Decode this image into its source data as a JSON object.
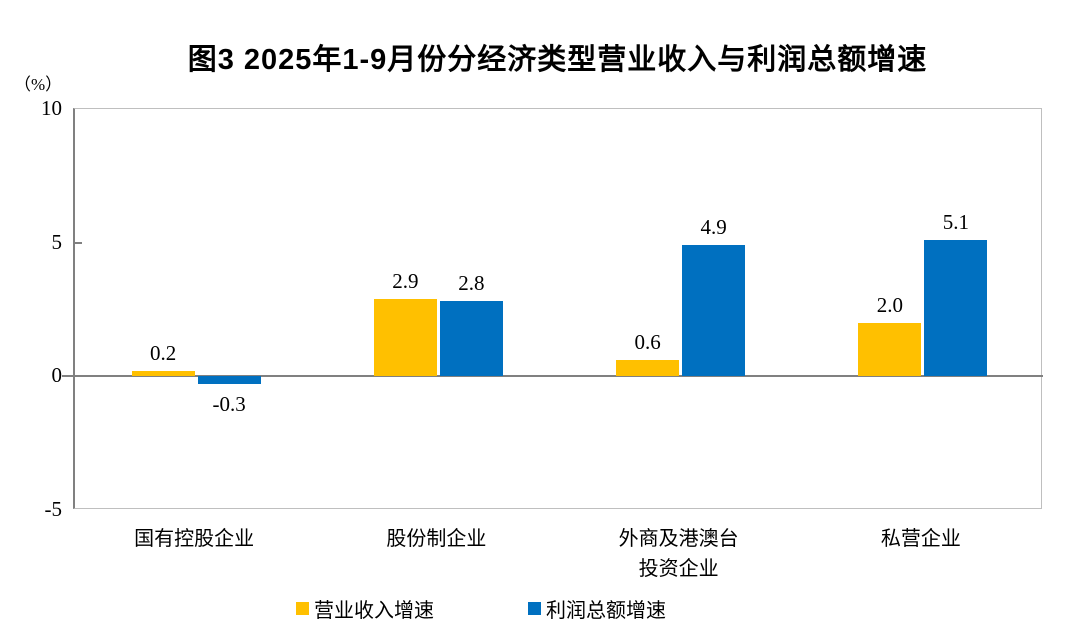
{
  "chart_data": {
    "type": "bar",
    "title": "图3  2025年1-9月份分经济类型营业收入与利润总额增速",
    "unit_label": "（%）",
    "categories": [
      "国有控股企业",
      "股份制企业",
      "外商及港澳台\n投资企业",
      "私营企业"
    ],
    "series": [
      {
        "name": "营业收入增速",
        "color": "#FFC000",
        "values": [
          0.2,
          2.9,
          0.6,
          2.0
        ]
      },
      {
        "name": "利润总额增速",
        "color": "#0070C0",
        "values": [
          -0.3,
          2.8,
          4.9,
          5.1
        ]
      }
    ],
    "value_labels": [
      [
        "0.2",
        "2.9",
        "0.6",
        "2.0"
      ],
      [
        "-0.3",
        "2.8",
        "4.9",
        "5.1"
      ]
    ],
    "ylim": [
      -5,
      10
    ],
    "yticks": [
      10,
      5,
      0,
      -5
    ],
    "grid": false,
    "legend_position": "bottom",
    "colors": {
      "axis_line": "#808080",
      "border": "#BFBFBF",
      "text": "#000000",
      "background": "#FFFFFF"
    }
  }
}
